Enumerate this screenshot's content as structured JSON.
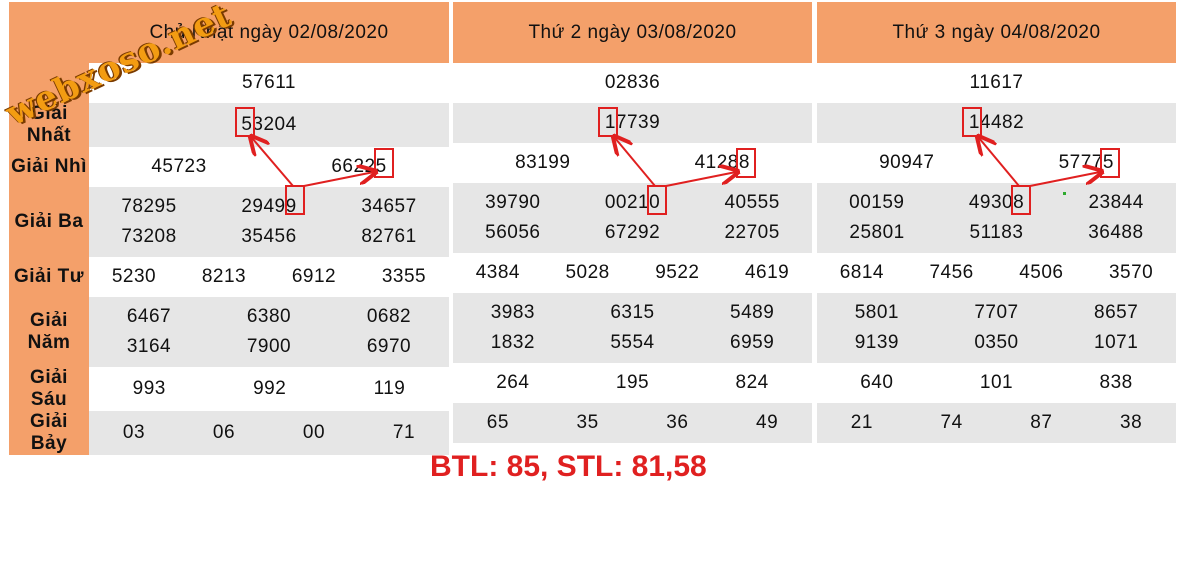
{
  "labels": [
    "Giải Nhất",
    "Giải Nhì",
    "Giải Ba",
    "Giải Tư",
    "Giải Năm",
    "Giải Sáu",
    "Giải Bảy"
  ],
  "days": [
    {
      "title": "Chủ Nhật ngày 02/08/2020",
      "special": "57611",
      "nhat": "53204",
      "nhi": [
        "45723",
        "66225"
      ],
      "ba": [
        "78295",
        "29499",
        "34657",
        "73208",
        "35456",
        "82761"
      ],
      "tu": [
        "5230",
        "8213",
        "6912",
        "3355"
      ],
      "nam": [
        "6467",
        "6380",
        "0682",
        "3164",
        "7900",
        "6970"
      ],
      "sau": [
        "993",
        "992",
        "119"
      ],
      "bay": [
        "03",
        "06",
        "00",
        "71"
      ]
    },
    {
      "title": "Thứ 2 ngày 03/08/2020",
      "special": "02836",
      "nhat": "17739",
      "nhi": [
        "83199",
        "41288"
      ],
      "ba": [
        "39790",
        "00210",
        "40555",
        "56056",
        "67292",
        "22705"
      ],
      "tu": [
        "4384",
        "5028",
        "9522",
        "4619"
      ],
      "nam": [
        "3983",
        "6315",
        "5489",
        "1832",
        "5554",
        "6959"
      ],
      "sau": [
        "264",
        "195",
        "824"
      ],
      "bay": [
        "65",
        "35",
        "36",
        "49"
      ]
    },
    {
      "title": "Thứ 3 ngày 04/08/2020",
      "special": "11617",
      "nhat": "14482",
      "nhi": [
        "90947",
        "57775"
      ],
      "ba": [
        "00159",
        "49308",
        "23844",
        "25801",
        "51183",
        "36488"
      ],
      "tu": [
        "6814",
        "7456",
        "4506",
        "3570"
      ],
      "nam": [
        "5801",
        "7707",
        "8657",
        "9139",
        "0350",
        "1071"
      ],
      "sau": [
        "640",
        "101",
        "838"
      ],
      "bay": [
        "21",
        "74",
        "87",
        "38"
      ]
    }
  ],
  "footer": "BTL: 85, STL: 81,58",
  "watermark": "webxoso.net",
  "colors": {
    "header": "#f4a06a",
    "special": "#e02020",
    "annotation": "#e02020",
    "row_alt": "#e6e6e6"
  }
}
